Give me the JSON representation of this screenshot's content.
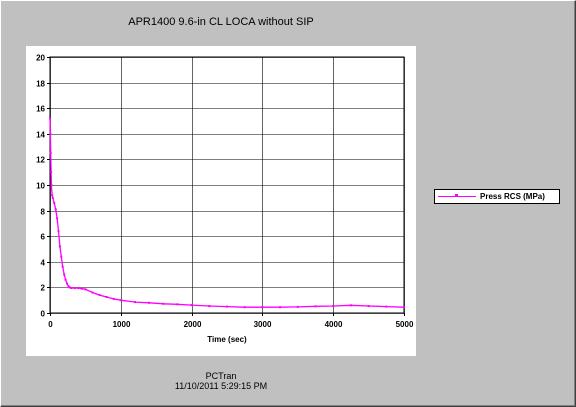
{
  "window": {
    "footer_name": "PCTran",
    "footer_date": "11/10/2011 5:29:15 PM"
  },
  "colors": {
    "background": "#c0c0c0",
    "plot_background": "#ffffff",
    "grid": "#000000",
    "series": "#ff00ff"
  },
  "chart_data": {
    "type": "line",
    "title": "APR1400 9.6-in CL LOCA without SIP",
    "xlabel": "Time (sec)",
    "ylabel": "",
    "xlim": [
      0,
      5000
    ],
    "ylim": [
      0,
      20
    ],
    "xticks": [
      "0",
      "1000",
      "2000",
      "3000",
      "4000",
      "5000"
    ],
    "yticks": [
      "0",
      "2",
      "4",
      "6",
      "8",
      "10",
      "12",
      "14",
      "16",
      "18",
      "20"
    ],
    "grid": true,
    "legend_position": "right",
    "series": [
      {
        "name": "Press RCS (MPa)",
        "color": "#ff00ff",
        "marker": "small-dot",
        "x": [
          0,
          5,
          10,
          15,
          20,
          30,
          40,
          60,
          80,
          100,
          120,
          140,
          160,
          180,
          200,
          220,
          240,
          260,
          280,
          300,
          350,
          400,
          450,
          500,
          600,
          700,
          800,
          900,
          1000,
          1200,
          1400,
          1600,
          1800,
          2000,
          2250,
          2500,
          2750,
          3000,
          3250,
          3500,
          3750,
          4000,
          4250,
          4500,
          4750,
          5000
        ],
        "y": [
          15.2,
          14.0,
          12.5,
          11.0,
          10.0,
          9.2,
          9.0,
          8.6,
          8.1,
          7.4,
          6.4,
          5.2,
          4.4,
          3.6,
          3.0,
          2.6,
          2.3,
          2.1,
          2.0,
          1.95,
          1.95,
          1.95,
          1.9,
          1.85,
          1.6,
          1.4,
          1.25,
          1.1,
          1.0,
          0.85,
          0.8,
          0.72,
          0.68,
          0.62,
          0.55,
          0.5,
          0.45,
          0.45,
          0.45,
          0.48,
          0.52,
          0.55,
          0.6,
          0.55,
          0.5,
          0.45
        ]
      }
    ]
  }
}
